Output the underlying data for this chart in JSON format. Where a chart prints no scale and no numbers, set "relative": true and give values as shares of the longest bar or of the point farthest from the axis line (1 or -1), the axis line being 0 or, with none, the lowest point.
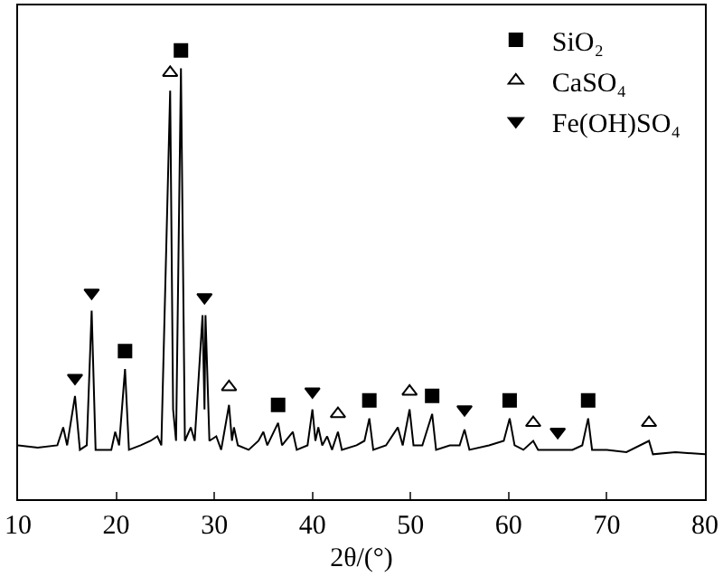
{
  "chart_data": {
    "type": "line",
    "relative": true,
    "xlabel": "2θ/(°)",
    "xlim": [
      10,
      80
    ],
    "xticks": [
      10,
      20,
      30,
      40,
      50,
      60,
      70,
      80
    ],
    "tick_labels": "x",
    "grid": false,
    "legend": "top right",
    "series": [
      {
        "type": "line",
        "color": "#000000",
        "marker": "none",
        "x": [
          10,
          12,
          14,
          14.6,
          15.0,
          15.8,
          16.3,
          17.0,
          17.5,
          17.9,
          19.5,
          19.9,
          20.3,
          20.9,
          21.3,
          22.5,
          23.5,
          24.2,
          24.6,
          25.5,
          25.8,
          26.1,
          26.6,
          27.0,
          27.6,
          28.0,
          28.8,
          29.0,
          29.1,
          29.5,
          30.2,
          30.7,
          31.5,
          31.8,
          32.0,
          32.4,
          33.5,
          34.5,
          35.0,
          35.4,
          36.5,
          36.9,
          38.0,
          38.4,
          39.5,
          40.0,
          40.3,
          40.6,
          41.0,
          41.5,
          42.0,
          42.6,
          43.0,
          44.5,
          45.3,
          45.8,
          46.2,
          47.5,
          48.7,
          49.2,
          49.9,
          50.3,
          51.2,
          52.2,
          52.6,
          54.0,
          55.0,
          55.5,
          56.0,
          58.0,
          59.5,
          60.1,
          60.6,
          61.5,
          62.5,
          63.0,
          64.5,
          65.0,
          66.5,
          67.5,
          68.1,
          68.5,
          70,
          72,
          74.3,
          74.7,
          77,
          80
        ],
        "values": [
          0.12,
          0.115,
          0.12,
          0.16,
          0.12,
          0.23,
          0.11,
          0.12,
          0.42,
          0.11,
          0.11,
          0.15,
          0.12,
          0.29,
          0.11,
          0.12,
          0.13,
          0.14,
          0.12,
          0.91,
          0.2,
          0.13,
          0.96,
          0.13,
          0.16,
          0.13,
          0.41,
          0.2,
          0.41,
          0.13,
          0.14,
          0.11,
          0.21,
          0.13,
          0.16,
          0.12,
          0.11,
          0.13,
          0.15,
          0.12,
          0.17,
          0.12,
          0.15,
          0.11,
          0.12,
          0.2,
          0.13,
          0.16,
          0.12,
          0.14,
          0.11,
          0.15,
          0.11,
          0.12,
          0.13,
          0.18,
          0.11,
          0.12,
          0.16,
          0.12,
          0.2,
          0.12,
          0.12,
          0.19,
          0.11,
          0.12,
          0.12,
          0.155,
          0.11,
          0.12,
          0.13,
          0.18,
          0.12,
          0.11,
          0.13,
          0.11,
          0.11,
          0.11,
          0.11,
          0.12,
          0.18,
          0.11,
          0.11,
          0.105,
          0.13,
          0.1,
          0.105,
          0.1
        ]
      },
      {
        "type": "scatter",
        "name": "SiO₂",
        "color": "#000000",
        "marker": "square",
        "x": [
          20.9,
          26.6,
          36.5,
          45.8,
          52.2,
          60.1,
          68.1
        ],
        "values": [
          0.33,
          1.0,
          0.21,
          0.22,
          0.23,
          0.22,
          0.22
        ]
      },
      {
        "type": "scatter",
        "name": "CaSO₄",
        "color": "#000000",
        "marker": "triangle",
        "x": [
          25.5,
          31.5,
          42.6,
          49.9,
          62.5,
          74.3
        ],
        "values": [
          0.95,
          0.25,
          0.19,
          0.24,
          0.17,
          0.17
        ]
      },
      {
        "type": "scatter",
        "name": "Fe(OH)SO₄",
        "color": "#000000",
        "marker": "triangle-down",
        "x": [
          15.8,
          17.5,
          29.0,
          40.0,
          55.5,
          65.0
        ],
        "values": [
          0.27,
          0.46,
          0.45,
          0.24,
          0.2,
          0.15
        ]
      }
    ]
  }
}
